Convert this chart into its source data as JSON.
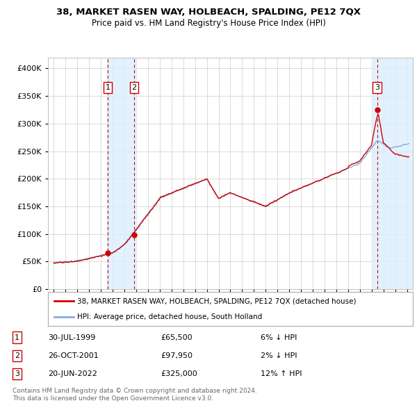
{
  "title": "38, MARKET RASEN WAY, HOLBEACH, SPALDING, PE12 7QX",
  "subtitle": "Price paid vs. HM Land Registry's House Price Index (HPI)",
  "transactions": [
    {
      "num": 1,
      "date": "30-JUL-1999",
      "price": 65500,
      "year": 1999.58,
      "pct": "6%",
      "dir": "↓"
    },
    {
      "num": 2,
      "date": "26-OCT-2001",
      "price": 97950,
      "year": 2001.82,
      "pct": "2%",
      "dir": "↓"
    },
    {
      "num": 3,
      "date": "20-JUN-2022",
      "price": 325000,
      "year": 2022.46,
      "pct": "12%",
      "dir": "↑"
    }
  ],
  "legend_label_red": "38, MARKET RASEN WAY, HOLBEACH, SPALDING, PE12 7QX (detached house)",
  "legend_label_blue": "HPI: Average price, detached house, South Holland",
  "footnote1": "Contains HM Land Registry data © Crown copyright and database right 2024.",
  "footnote2": "This data is licensed under the Open Government Licence v3.0.",
  "red_color": "#cc0000",
  "blue_color": "#88aadd",
  "highlight_color": "#ddeeff",
  "grid_color": "#cccccc",
  "background_color": "#ffffff",
  "ylim": [
    0,
    420000
  ],
  "yticks": [
    0,
    50000,
    100000,
    150000,
    200000,
    250000,
    300000,
    350000,
    400000
  ],
  "xlim_start": 1994.5,
  "xlim_end": 2025.5
}
